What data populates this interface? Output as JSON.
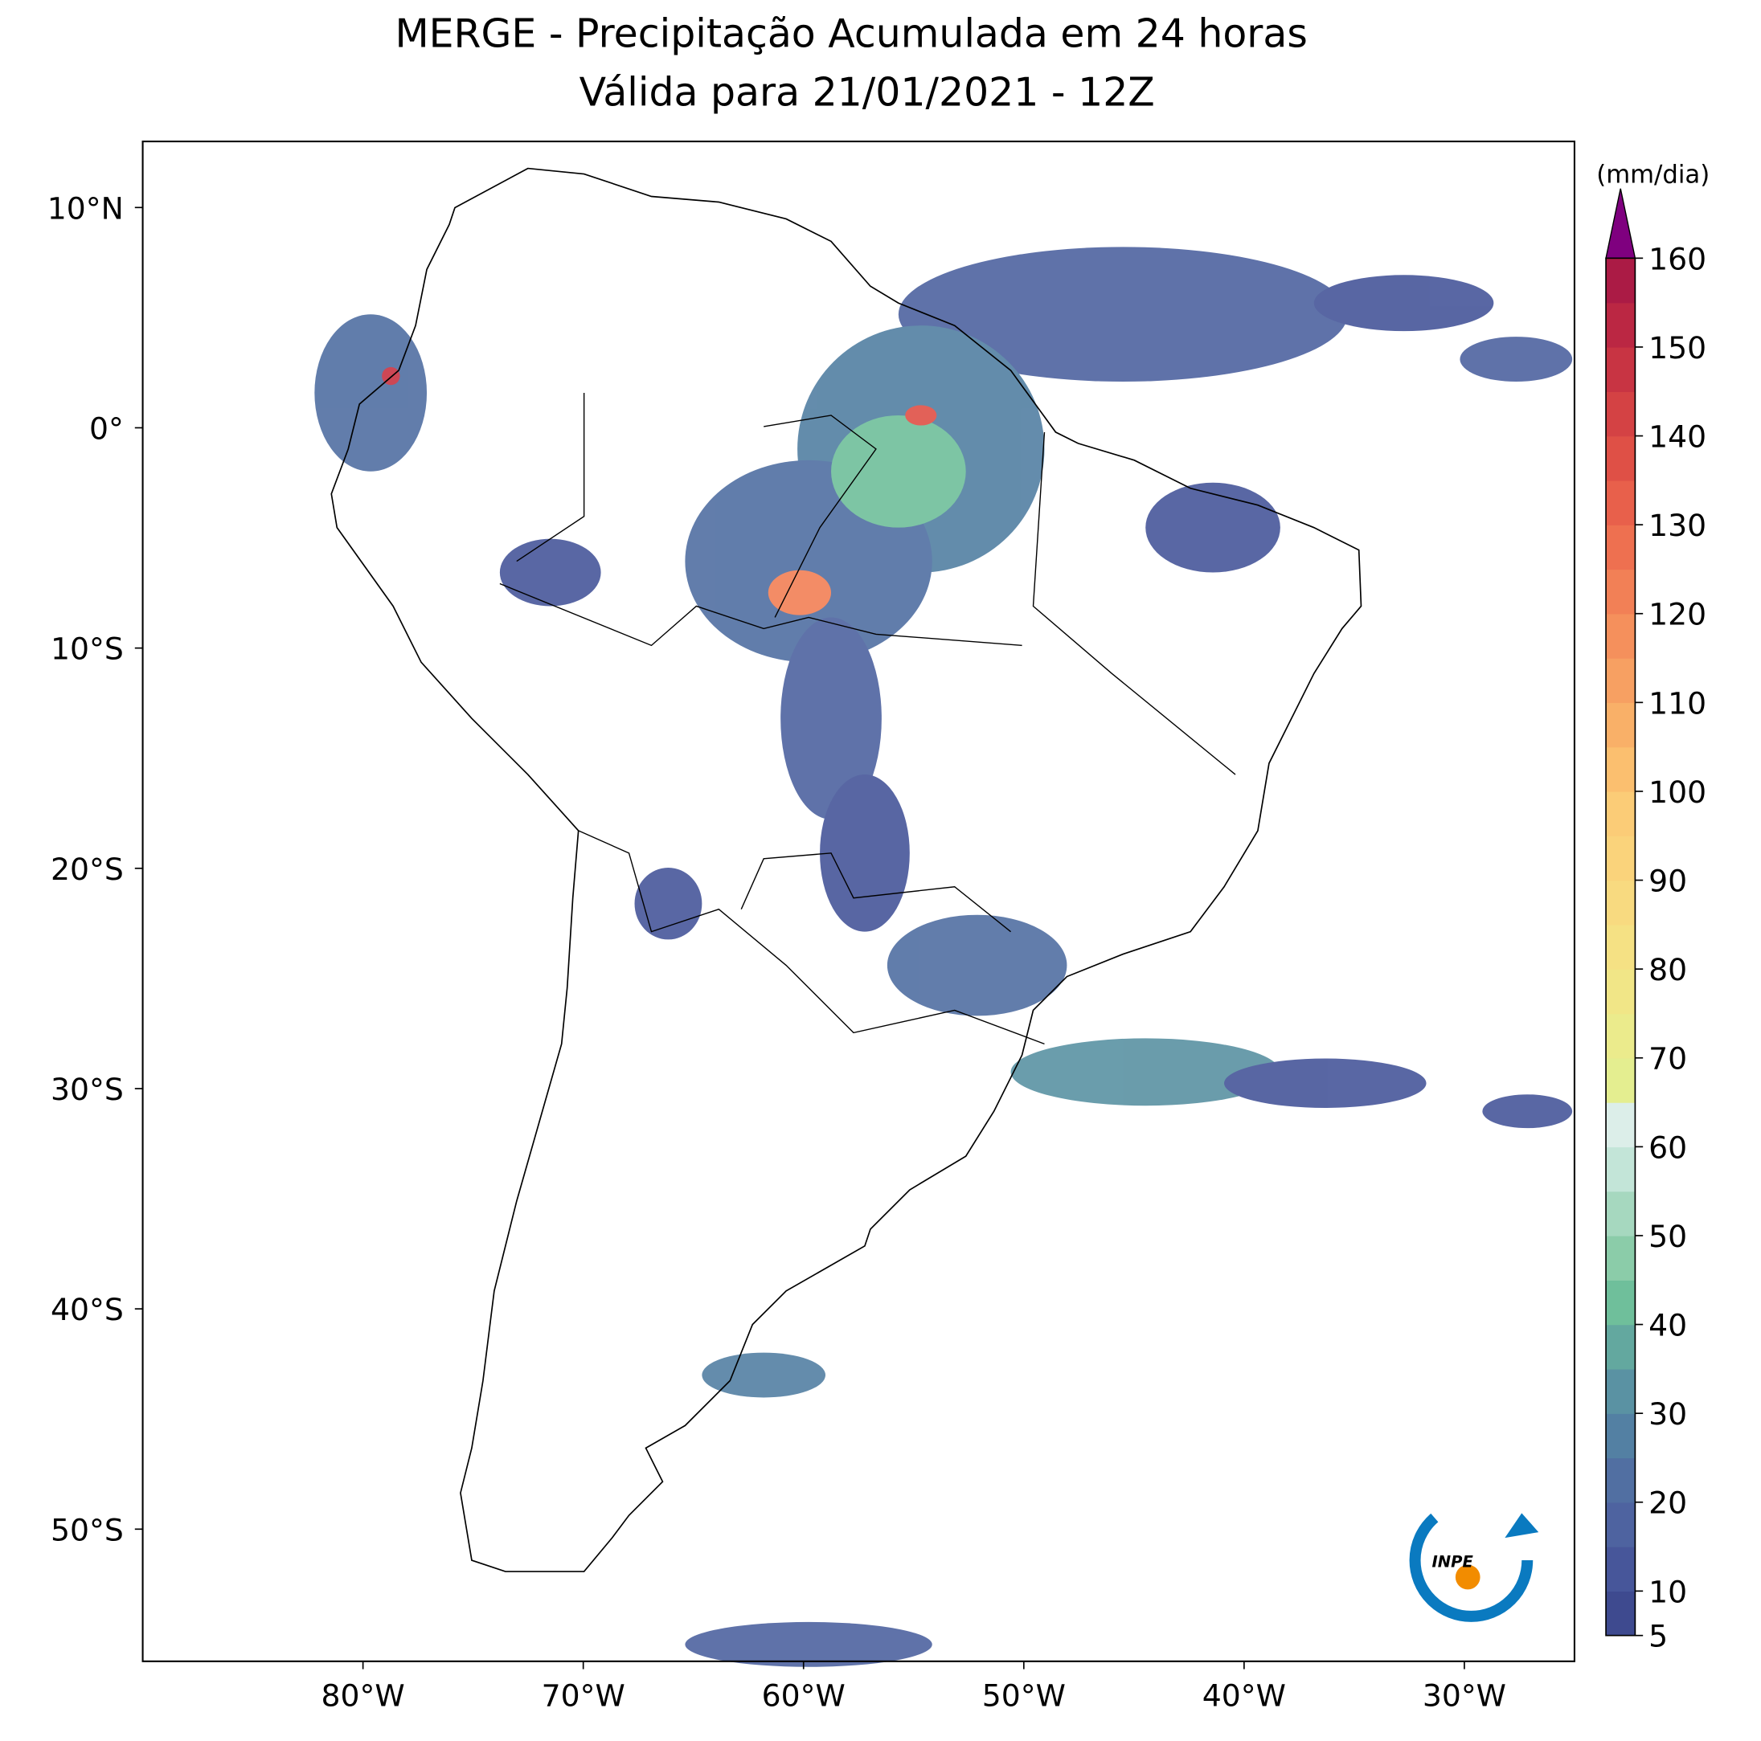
{
  "chart_data": {
    "type": "map",
    "title": "MERGE - Precipitação Acumulada em 24 horas",
    "subtitle": "Válida para 21/01/2021 - 12Z",
    "xlim": [
      -90,
      -25
    ],
    "ylim": [
      -56,
      13
    ],
    "xticks": [
      {
        "value": -80,
        "label": "80°W"
      },
      {
        "value": -70,
        "label": "70°W"
      },
      {
        "value": -60,
        "label": "60°W"
      },
      {
        "value": -50,
        "label": "50°W"
      },
      {
        "value": -40,
        "label": "40°W"
      },
      {
        "value": -30,
        "label": "30°W"
      }
    ],
    "yticks": [
      {
        "value": 10,
        "label": "10°N"
      },
      {
        "value": 0,
        "label": "0°"
      },
      {
        "value": -10,
        "label": "10°S"
      },
      {
        "value": -20,
        "label": "20°S"
      },
      {
        "value": -30,
        "label": "30°S"
      },
      {
        "value": -40,
        "label": "40°S"
      },
      {
        "value": -50,
        "label": "50°S"
      }
    ],
    "colorbar": {
      "label": "(mm/dia)",
      "lim": [
        5,
        160
      ],
      "ticks": [
        5,
        10,
        20,
        30,
        40,
        50,
        60,
        70,
        80,
        90,
        100,
        110,
        120,
        130,
        140,
        150,
        160
      ],
      "levels": [
        5,
        10,
        15,
        20,
        25,
        30,
        35,
        40,
        45,
        50,
        55,
        60,
        65,
        70,
        75,
        80,
        85,
        90,
        95,
        100,
        105,
        110,
        115,
        120,
        125,
        130,
        135,
        140,
        145,
        150,
        155,
        160
      ],
      "colors": [
        "#3e4a8f",
        "#47569a",
        "#4e63a0",
        "#516fa2",
        "#5380a3",
        "#5a92a3",
        "#63a89f",
        "#6fbf9b",
        "#8bcca9",
        "#a6d8bf",
        "#c3e5d8",
        "#dceee9",
        "#e4ee90",
        "#ebeb8c",
        "#f1e687",
        "#f5e184",
        "#f8da80",
        "#fad37b",
        "#fbcc77",
        "#fbbf6f",
        "#f9b068",
        "#f7a062",
        "#f5905c",
        "#f28056",
        "#ee7050",
        "#e8604b",
        "#df5046",
        "#d44244",
        "#c83443",
        "#bb2743",
        "#ab1b45"
      ],
      "extend_color": "#7f007f"
    },
    "logo_text": "INPE"
  }
}
